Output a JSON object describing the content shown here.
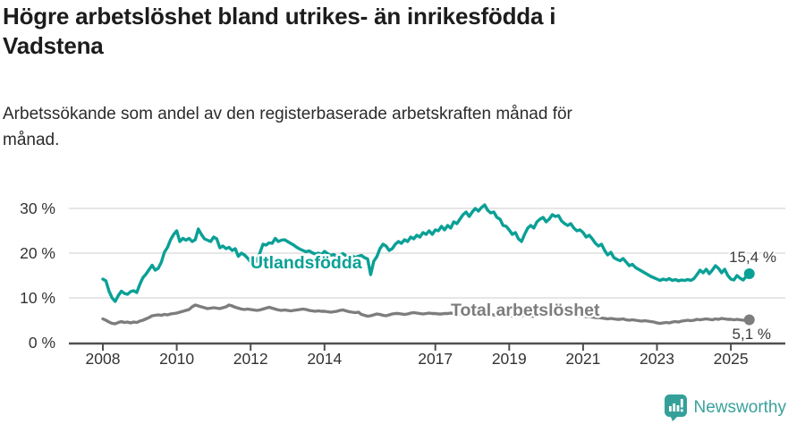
{
  "header": {
    "title": "Högre arbetslöshet bland utrikes- än inrikesfödda i\nVadstena",
    "subtitle": "Arbetssökande som andel av den registerbaserade arbetskraften månad för\nmånad."
  },
  "footer": {
    "brand": "Newsworthy"
  },
  "colors": {
    "accent_teal": "#0aa096",
    "series_gray": "#7d7d7d",
    "gridline": "#d8d8d8",
    "axis": "#4f4f4f",
    "tick_text": "#333333",
    "annotation_text": "#3a3a3a",
    "logo_teal": "#35a09a"
  },
  "chart_data": {
    "type": "line",
    "title": "Högre arbetslöshet bland utrikes- än inrikesfödda i Vadstena",
    "subtitle": "Arbetssökande som andel av den registerbaserade arbetskraften månad för månad.",
    "unit": "%",
    "x_start_year": 2008,
    "x_step": "month",
    "x_tick_labels": [
      "2008",
      "2010",
      "2012",
      "2014",
      "2017",
      "2019",
      "2021",
      "2023",
      "2025"
    ],
    "x_tick_years": [
      2008,
      2010,
      2012,
      2014,
      2017,
      2019,
      2021,
      2023,
      2025
    ],
    "y_ticks": [
      0,
      10,
      20,
      30
    ],
    "y_tick_labels": [
      "0 %",
      "10 %",
      "20 %",
      "30 %"
    ],
    "ylim": [
      0,
      33
    ],
    "grid": "horizontal",
    "legend_position": "inline-labels",
    "series": [
      {
        "name": "Utlandsfödda",
        "color": "#0aa096",
        "end_label": "15,4 %",
        "end_value": 15.4,
        "values": [
          14.2,
          13.8,
          11.5,
          10.0,
          9.2,
          10.5,
          11.5,
          11.0,
          10.8,
          11.4,
          11.6,
          11.2,
          13.0,
          14.5,
          15.3,
          16.3,
          17.3,
          16.2,
          16.6,
          18.0,
          20.2,
          21.3,
          23.0,
          24.2,
          25.0,
          22.6,
          23.3,
          22.9,
          23.3,
          22.6,
          23.0,
          25.4,
          24.2,
          23.2,
          22.9,
          22.6,
          23.6,
          23.2,
          21.2,
          21.6,
          21.0,
          21.3,
          20.6,
          21.0,
          19.3,
          20.0,
          19.6,
          18.9,
          18.0,
          18.6,
          18.2,
          20.0,
          22.0,
          21.8,
          22.3,
          22.2,
          23.3,
          22.6,
          22.9,
          23.0,
          22.6,
          22.2,
          21.8,
          21.3,
          20.9,
          20.6,
          20.3,
          20.5,
          20.1,
          19.8,
          20.0,
          19.7,
          20.4,
          19.9,
          19.5,
          19.7,
          19.3,
          19.6,
          19.9,
          19.4,
          19.1,
          19.4,
          19.0,
          19.3,
          19.5,
          19.0,
          18.7,
          15.2,
          18.2,
          19.2,
          21.0,
          22.0,
          21.6,
          20.6,
          21.0,
          22.0,
          22.6,
          22.2,
          23.0,
          22.6,
          23.6,
          23.2,
          24.0,
          23.6,
          24.6,
          24.2,
          25.0,
          24.2,
          25.2,
          25.0,
          26.0,
          25.2,
          26.2,
          25.6,
          27.0,
          26.6,
          27.6,
          28.6,
          29.2,
          28.2,
          29.2,
          30.0,
          29.4,
          30.2,
          30.8,
          29.6,
          29.0,
          29.2,
          28.0,
          27.6,
          26.2,
          26.0,
          25.2,
          24.2,
          24.6,
          23.2,
          22.6,
          24.2,
          25.6,
          26.2,
          25.6,
          27.0,
          27.6,
          28.0,
          27.0,
          27.6,
          28.6,
          28.2,
          28.4,
          27.2,
          26.6,
          26.2,
          26.6,
          25.6,
          25.0,
          25.2,
          24.6,
          23.6,
          24.0,
          23.2,
          22.2,
          21.6,
          22.0,
          20.6,
          19.6,
          20.2,
          19.0,
          18.6,
          18.3,
          18.8,
          18.0,
          17.2,
          17.5,
          16.8,
          16.4,
          16.0,
          15.6,
          15.2,
          14.8,
          14.5,
          14.2,
          13.9,
          14.2,
          14.0,
          14.3,
          13.9,
          14.1,
          13.8,
          14.0,
          13.9,
          14.1,
          13.9,
          14.3,
          15.2,
          16.2,
          15.6,
          16.4,
          15.4,
          16.2,
          17.2,
          16.6,
          15.6,
          16.4,
          15.0,
          14.2,
          14.0,
          15.0,
          14.4,
          14.0,
          14.8,
          15.4
        ]
      },
      {
        "name": "Total arbetslöshet",
        "color": "#7d7d7d",
        "end_label": "5,1 %",
        "end_value": 5.1,
        "values": [
          5.3,
          5.0,
          4.6,
          4.3,
          4.2,
          4.5,
          4.7,
          4.5,
          4.6,
          4.4,
          4.6,
          4.5,
          4.8,
          5.0,
          5.3,
          5.6,
          6.0,
          6.1,
          6.2,
          6.1,
          6.3,
          6.2,
          6.4,
          6.5,
          6.6,
          6.8,
          7.0,
          7.2,
          7.4,
          8.0,
          8.4,
          8.2,
          8.0,
          7.8,
          7.6,
          7.7,
          7.8,
          7.7,
          7.6,
          7.8,
          8.0,
          8.4,
          8.2,
          7.9,
          7.7,
          7.5,
          7.4,
          7.5,
          7.4,
          7.3,
          7.2,
          7.3,
          7.5,
          7.7,
          7.9,
          7.7,
          7.5,
          7.3,
          7.2,
          7.3,
          7.2,
          7.1,
          7.2,
          7.3,
          7.4,
          7.5,
          7.4,
          7.2,
          7.1,
          7.0,
          7.1,
          7.0,
          7.0,
          6.9,
          6.8,
          6.9,
          7.0,
          7.2,
          7.3,
          7.1,
          6.9,
          6.8,
          6.7,
          6.8,
          6.3,
          6.1,
          5.9,
          6.0,
          6.2,
          6.4,
          6.3,
          6.1,
          6.0,
          6.2,
          6.4,
          6.5,
          6.5,
          6.4,
          6.3,
          6.4,
          6.6,
          6.7,
          6.6,
          6.5,
          6.4,
          6.5,
          6.6,
          6.5,
          6.5,
          6.4,
          6.4,
          6.5,
          6.5,
          6.6,
          6.5,
          6.4,
          6.3,
          6.3,
          6.4,
          6.4,
          6.3,
          6.2,
          6.2,
          6.3,
          6.4,
          6.4,
          6.3,
          6.2,
          6.1,
          6.0,
          6.0,
          6.1,
          6.0,
          5.9,
          5.9,
          6.0,
          6.0,
          6.1,
          6.0,
          5.9,
          5.9,
          6.0,
          6.1,
          6.2,
          6.2,
          6.3,
          6.5,
          6.6,
          6.6,
          6.5,
          6.4,
          6.3,
          6.2,
          6.1,
          6.0,
          5.9,
          5.9,
          5.8,
          5.8,
          5.7,
          5.6,
          5.6,
          5.5,
          5.4,
          5.3,
          5.4,
          5.3,
          5.2,
          5.2,
          5.3,
          5.1,
          5.0,
          5.1,
          5.0,
          4.9,
          4.8,
          4.9,
          4.8,
          4.7,
          4.6,
          4.4,
          4.3,
          4.4,
          4.5,
          4.4,
          4.6,
          4.7,
          4.6,
          4.8,
          4.9,
          5.0,
          4.9,
          5.0,
          5.2,
          5.1,
          5.2,
          5.3,
          5.2,
          5.1,
          5.3,
          5.2,
          5.4,
          5.3,
          5.2,
          5.2,
          5.1,
          5.2,
          5.1,
          5.0,
          5.1,
          5.1
        ]
      }
    ]
  }
}
